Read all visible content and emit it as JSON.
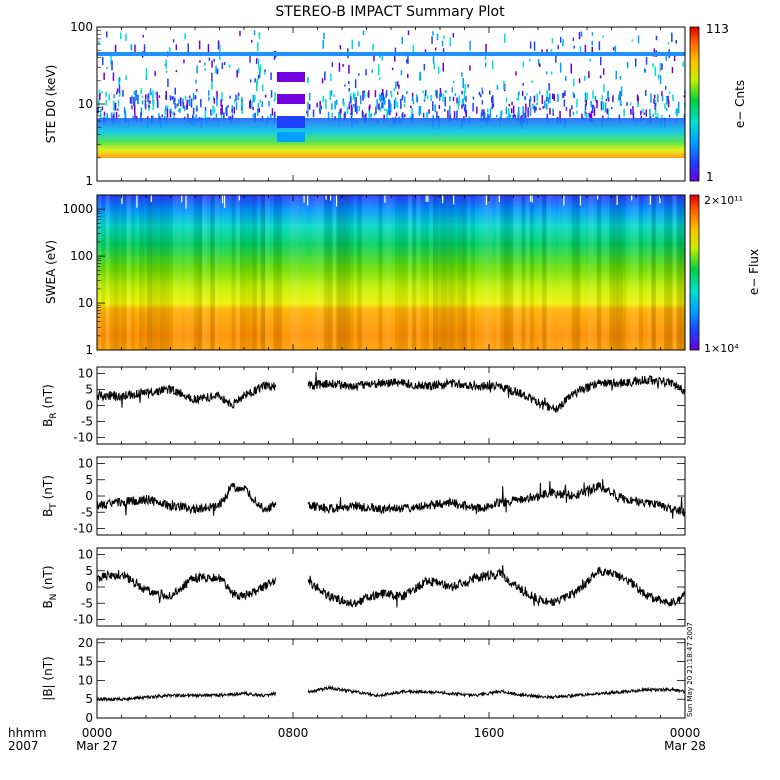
{
  "title": "STEREO-B IMPACT Summary Plot",
  "timestamp": "Sun May 20 21:18:47 2007",
  "time_axis": {
    "row1": [
      "hhmm",
      "0000",
      "0800",
      "1600",
      "0000"
    ],
    "row2": [
      "2007",
      "Mar 27",
      "Mar 28"
    ]
  },
  "colors": {
    "rainbow": [
      "#6a00d8",
      "#2040ff",
      "#00a0ff",
      "#00e0d0",
      "#00d040",
      "#c8f000",
      "#ffc000",
      "#ff6000",
      "#e00000"
    ]
  },
  "chart_data": [
    {
      "type": "heatmap",
      "ylabel": "STE D0 (keV)",
      "yscale": "log",
      "ylim": [
        1,
        100
      ],
      "yticks": [
        "100",
        "10",
        "1"
      ],
      "colorbar": {
        "label": "e− Cnts",
        "max": "113",
        "min": "1"
      }
    },
    {
      "type": "heatmap",
      "ylabel": "SWEA (eV)",
      "yscale": "log",
      "ylim": [
        1,
        2000
      ],
      "yticks": [
        "1000",
        "100",
        "10",
        "1"
      ],
      "colorbar": {
        "label": "e− Flux",
        "max": "2×10¹¹",
        "min": "1×10⁴"
      }
    },
    {
      "type": "line",
      "ylabel_main": "B",
      "ylabel_sub": "R",
      "ylabel_unit": "(nT)",
      "ylim": [
        -12,
        12
      ],
      "yticks": [
        "10",
        "5",
        "0",
        "-5",
        "-10"
      ],
      "x_hours": [
        0,
        1,
        2,
        3,
        4,
        5,
        5.5,
        6,
        6.8,
        7.3,
        8.6,
        9.5,
        10.5,
        11.5,
        12.5,
        13.5,
        14.5,
        15.5,
        16.5,
        17.5,
        18.2,
        18.8,
        19.5,
        20.5,
        21.5,
        22.5,
        23.5,
        24
      ],
      "values": [
        3,
        3,
        4,
        5,
        2,
        3,
        0,
        3,
        6,
        6,
        6,
        7,
        6,
        7,
        7,
        6,
        7,
        6,
        6,
        3,
        0,
        -1,
        4,
        7,
        7,
        8,
        7,
        4
      ]
    },
    {
      "type": "line",
      "ylabel_main": "B",
      "ylabel_sub": "T",
      "ylabel_unit": "(nT)",
      "ylim": [
        -12,
        12
      ],
      "yticks": [
        "10",
        "5",
        "0",
        "-5",
        "-10"
      ],
      "x_hours": [
        0,
        1,
        2,
        3,
        4,
        5,
        5.5,
        6,
        6.8,
        7.3,
        8.6,
        9.5,
        10.5,
        11.5,
        12.5,
        13.5,
        14.5,
        15.5,
        16.5,
        17.5,
        18.5,
        19.5,
        20.5,
        21.5,
        22.5,
        23.5,
        24
      ],
      "values": [
        -3,
        -2,
        -1,
        -3,
        -4,
        -3,
        3,
        2,
        -4,
        -3,
        -3,
        -4,
        -3,
        -4,
        -4,
        -3,
        -2,
        -4,
        -2,
        -1,
        1,
        0,
        3,
        -1,
        -2,
        -4,
        -5
      ]
    },
    {
      "type": "line",
      "ylabel_main": "B",
      "ylabel_sub": "N",
      "ylabel_unit": "(nT)",
      "ylim": [
        -12,
        12
      ],
      "yticks": [
        "10",
        "5",
        "0",
        "-5",
        "-10"
      ],
      "x_hours": [
        0,
        1,
        2,
        3,
        4,
        5,
        5.5,
        6,
        6.8,
        7.3,
        8.6,
        9.5,
        10.5,
        11.5,
        12.5,
        13.5,
        14.5,
        15.5,
        16.5,
        17.5,
        18.5,
        19.5,
        20.5,
        21.5,
        22.5,
        23.5,
        24
      ],
      "values": [
        3,
        4,
        -1,
        -3,
        3,
        3,
        -2,
        -3,
        0,
        2,
        2,
        -3,
        -5,
        -2,
        -3,
        2,
        0,
        3,
        4,
        -2,
        -5,
        -2,
        5,
        3,
        -3,
        -5,
        -2
      ]
    },
    {
      "type": "line",
      "ylabel_main": "|B|",
      "ylabel_sub": "",
      "ylabel_unit": "(nT)",
      "ylim": [
        0,
        21
      ],
      "yticks": [
        "20",
        "15",
        "10",
        "5",
        "0"
      ],
      "x_hours": [
        0,
        1,
        2,
        3,
        4,
        5,
        6,
        6.8,
        7.3,
        8.6,
        9.5,
        10.5,
        11.5,
        12.5,
        13.5,
        14.5,
        15.5,
        16.5,
        17.5,
        18.5,
        19.5,
        20.5,
        21.5,
        22.5,
        23.5,
        24
      ],
      "values": [
        5,
        5,
        5.5,
        6,
        6,
        6,
        6.5,
        6,
        6.5,
        7,
        8,
        7,
        6,
        7,
        7,
        6.5,
        6,
        7,
        6,
        5.5,
        6,
        6.5,
        7,
        7.5,
        7.5,
        7
      ]
    }
  ]
}
